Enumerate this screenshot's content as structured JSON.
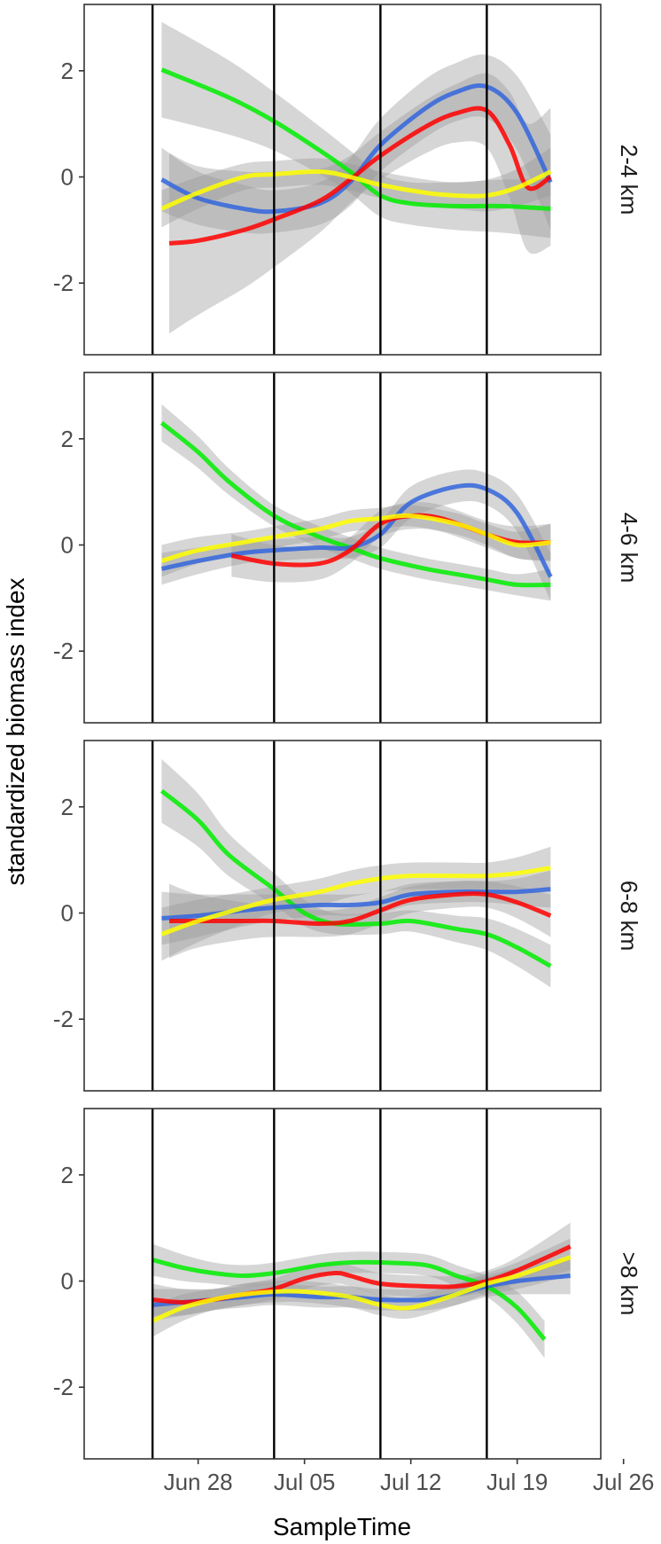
{
  "chart_data": {
    "type": "line",
    "title": "",
    "xlabel": "SampleTime",
    "ylabel": "standardized biomass index",
    "x_units": "days relative to Jun 28",
    "xlim": [
      -7.5,
      26.5
    ],
    "ylim": [
      -3.35,
      3.25
    ],
    "x_ticks": [
      {
        "label": "Jun 28",
        "day": 0
      },
      {
        "label": "Jul 05",
        "day": 7
      },
      {
        "label": "Jul 12",
        "day": 14
      },
      {
        "label": "Jul 19",
        "day": 21
      },
      {
        "label": "Jul 26",
        "day": 28
      }
    ],
    "y_ticks": [
      {
        "label": "2",
        "value": 2
      },
      {
        "label": "0",
        "value": 0
      },
      {
        "label": "-2",
        "value": -2
      }
    ],
    "vlines_day": [
      -3,
      5,
      12,
      19
    ],
    "grid": false,
    "legend": "none",
    "series_colors": {
      "blue": "#3366dd",
      "red": "#ff0000",
      "green": "#00ee00",
      "yellow": "#ffff00"
    },
    "ribbon_color": "#999999",
    "panels": [
      {
        "label": "2-4 km",
        "series": [
          {
            "name": "green",
            "x": [
              -2.4,
              2,
              5,
              8,
              10,
              12,
              14,
              17,
              20,
              23.2
            ],
            "y": [
              2.02,
              1.5,
              1.05,
              0.5,
              0.1,
              -0.35,
              -0.5,
              -0.55,
              -0.55,
              -0.6
            ],
            "se": [
              0.9,
              0.7,
              0.55,
              0.45,
              0.4,
              0.4,
              0.4,
              0.45,
              0.5,
              0.55
            ]
          },
          {
            "name": "blue",
            "x": [
              -2.4,
              0,
              3,
              5,
              8,
              10,
              12,
              15,
              17,
              19,
              21,
              23.2
            ],
            "y": [
              -0.05,
              -0.4,
              -0.6,
              -0.65,
              -0.5,
              -0.1,
              0.6,
              1.3,
              1.6,
              1.7,
              1.2,
              -0.1
            ],
            "se": [
              0.6,
              0.5,
              0.45,
              0.4,
              0.4,
              0.45,
              0.5,
              0.55,
              0.55,
              0.6,
              0.7,
              0.9
            ]
          },
          {
            "name": "red",
            "x": [
              -1.9,
              0,
              3,
              5,
              8,
              10,
              12,
              15,
              17,
              19,
              20.5,
              21.7,
              23.2
            ],
            "y": [
              -1.25,
              -1.2,
              -1.0,
              -0.8,
              -0.45,
              -0.05,
              0.4,
              0.95,
              1.2,
              1.25,
              0.6,
              -0.2,
              0.0
            ],
            "se": [
              1.7,
              1.4,
              1.1,
              0.9,
              0.6,
              0.45,
              0.45,
              0.5,
              0.55,
              0.7,
              1.0,
              1.2,
              1.3
            ]
          },
          {
            "name": "yellow",
            "x": [
              -2.4,
              0,
              3,
              5,
              8,
              10,
              12,
              15,
              17,
              19,
              21,
              23.2
            ],
            "y": [
              -0.6,
              -0.3,
              0.0,
              0.05,
              0.1,
              0.0,
              -0.15,
              -0.3,
              -0.35,
              -0.35,
              -0.2,
              0.1
            ],
            "se": [
              0.35,
              0.3,
              0.25,
              0.25,
              0.25,
              0.25,
              0.25,
              0.25,
              0.25,
              0.3,
              0.35,
              0.45
            ]
          }
        ]
      },
      {
        "label": "4-6 km",
        "series": [
          {
            "name": "green",
            "x": [
              -2.4,
              0,
              2,
              5,
              8,
              10,
              12,
              15,
              17,
              19,
              21,
              23.2
            ],
            "y": [
              2.3,
              1.75,
              1.2,
              0.55,
              0.15,
              -0.05,
              -0.25,
              -0.45,
              -0.55,
              -0.65,
              -0.75,
              -0.75
            ],
            "se": [
              0.35,
              0.3,
              0.25,
              0.2,
              0.2,
              0.2,
              0.2,
              0.2,
              0.2,
              0.2,
              0.2,
              0.3
            ]
          },
          {
            "name": "blue",
            "x": [
              -2.4,
              0,
              3,
              5,
              8,
              10,
              12,
              14,
              17,
              19,
              21,
              23.2
            ],
            "y": [
              -0.45,
              -0.3,
              -0.15,
              -0.1,
              -0.05,
              -0.05,
              0.2,
              0.8,
              1.1,
              1.05,
              0.6,
              -0.6
            ],
            "se": [
              0.3,
              0.25,
              0.2,
              0.2,
              0.2,
              0.2,
              0.25,
              0.3,
              0.3,
              0.3,
              0.35,
              0.45
            ]
          },
          {
            "name": "red",
            "x": [
              2.2,
              5,
              8,
              10,
              12,
              14,
              16,
              19,
              21,
              23.2
            ],
            "y": [
              -0.2,
              -0.35,
              -0.35,
              -0.1,
              0.4,
              0.55,
              0.5,
              0.2,
              0.05,
              0.05
            ],
            "se": [
              0.4,
              0.35,
              0.3,
              0.25,
              0.25,
              0.25,
              0.25,
              0.25,
              0.3,
              0.35
            ]
          },
          {
            "name": "yellow",
            "x": [
              -2.4,
              0,
              3,
              5,
              8,
              10,
              12,
              14,
              17,
              19,
              21,
              23.2
            ],
            "y": [
              -0.3,
              -0.1,
              0.05,
              0.15,
              0.3,
              0.45,
              0.5,
              0.55,
              0.4,
              0.2,
              0.0,
              0.05
            ],
            "se": [
              0.3,
              0.25,
              0.2,
              0.2,
              0.2,
              0.2,
              0.2,
              0.2,
              0.2,
              0.2,
              0.25,
              0.35
            ]
          }
        ]
      },
      {
        "label": "6-8 km",
        "series": [
          {
            "name": "green",
            "x": [
              -2.4,
              0,
              2,
              5,
              7,
              9,
              12,
              14,
              17,
              19,
              21,
              23.2
            ],
            "y": [
              2.3,
              1.75,
              1.1,
              0.45,
              0.0,
              -0.2,
              -0.2,
              -0.15,
              -0.3,
              -0.4,
              -0.65,
              -1.0
            ],
            "se": [
              0.6,
              0.5,
              0.4,
              0.3,
              0.25,
              0.2,
              0.2,
              0.2,
              0.25,
              0.3,
              0.35,
              0.4
            ]
          },
          {
            "name": "blue",
            "x": [
              -2.4,
              0,
              3,
              5,
              8,
              10,
              12,
              14,
              17,
              19,
              21,
              23.2
            ],
            "y": [
              -0.1,
              -0.05,
              0.05,
              0.1,
              0.15,
              0.15,
              0.2,
              0.35,
              0.4,
              0.4,
              0.4,
              0.45
            ],
            "se": [
              0.5,
              0.4,
              0.3,
              0.25,
              0.2,
              0.2,
              0.2,
              0.2,
              0.2,
              0.2,
              0.25,
              0.35
            ]
          },
          {
            "name": "red",
            "x": [
              -1.9,
              0,
              3,
              5,
              8,
              10,
              12,
              14,
              17,
              19,
              21,
              23.2
            ],
            "y": [
              -0.15,
              -0.15,
              -0.15,
              -0.15,
              -0.2,
              -0.15,
              0.05,
              0.25,
              0.35,
              0.35,
              0.2,
              -0.05
            ],
            "se": [
              0.7,
              0.5,
              0.35,
              0.3,
              0.25,
              0.25,
              0.25,
              0.25,
              0.25,
              0.25,
              0.3,
              0.4
            ]
          },
          {
            "name": "yellow",
            "x": [
              -2.4,
              0,
              3,
              5,
              8,
              10,
              12,
              14,
              17,
              19,
              21,
              23.2
            ],
            "y": [
              -0.4,
              -0.15,
              0.1,
              0.25,
              0.4,
              0.55,
              0.65,
              0.7,
              0.7,
              0.7,
              0.75,
              0.85
            ],
            "se": [
              0.5,
              0.4,
              0.3,
              0.25,
              0.25,
              0.25,
              0.25,
              0.25,
              0.25,
              0.25,
              0.3,
              0.4
            ]
          }
        ]
      },
      {
        "label": ">8 km",
        "series": [
          {
            "name": "green",
            "x": [
              -3,
              -1,
              1,
              3,
              5,
              8,
              10,
              12,
              15,
              17,
              19,
              21,
              22.8
            ],
            "y": [
              0.4,
              0.25,
              0.15,
              0.1,
              0.15,
              0.3,
              0.35,
              0.35,
              0.3,
              0.1,
              -0.1,
              -0.5,
              -1.1
            ],
            "se": [
              0.3,
              0.25,
              0.2,
              0.2,
              0.2,
              0.2,
              0.2,
              0.2,
              0.2,
              0.2,
              0.2,
              0.3,
              0.35
            ]
          },
          {
            "name": "blue",
            "x": [
              -3,
              -1,
              1,
              3,
              5,
              8,
              10,
              12,
              15,
              17,
              19,
              21,
              24.5
            ],
            "y": [
              -0.45,
              -0.4,
              -0.35,
              -0.3,
              -0.25,
              -0.3,
              -0.3,
              -0.35,
              -0.35,
              -0.25,
              -0.1,
              0.0,
              0.1
            ],
            "se": [
              0.3,
              0.25,
              0.2,
              0.2,
              0.2,
              0.2,
              0.2,
              0.2,
              0.2,
              0.2,
              0.2,
              0.25,
              0.35
            ]
          },
          {
            "name": "red",
            "x": [
              -3,
              -1,
              1,
              3,
              5,
              7,
              9,
              10,
              12,
              15,
              17,
              19,
              21,
              24.5
            ],
            "y": [
              -0.35,
              -0.4,
              -0.35,
              -0.25,
              -0.15,
              0.05,
              0.15,
              0.1,
              -0.05,
              -0.1,
              -0.1,
              0.0,
              0.2,
              0.65
            ],
            "se": [
              0.3,
              0.25,
              0.2,
              0.2,
              0.2,
              0.2,
              0.2,
              0.2,
              0.2,
              0.2,
              0.2,
              0.2,
              0.25,
              0.45
            ]
          },
          {
            "name": "yellow",
            "x": [
              -3,
              -1,
              1,
              3,
              5,
              7,
              10,
              12,
              14,
              17,
              19,
              21,
              24.5
            ],
            "y": [
              -0.75,
              -0.5,
              -0.35,
              -0.25,
              -0.2,
              -0.2,
              -0.3,
              -0.45,
              -0.5,
              -0.25,
              -0.05,
              0.1,
              0.45
            ],
            "se": [
              0.3,
              0.25,
              0.2,
              0.2,
              0.2,
              0.2,
              0.2,
              0.2,
              0.2,
              0.2,
              0.2,
              0.25,
              0.35
            ]
          }
        ]
      }
    ]
  }
}
